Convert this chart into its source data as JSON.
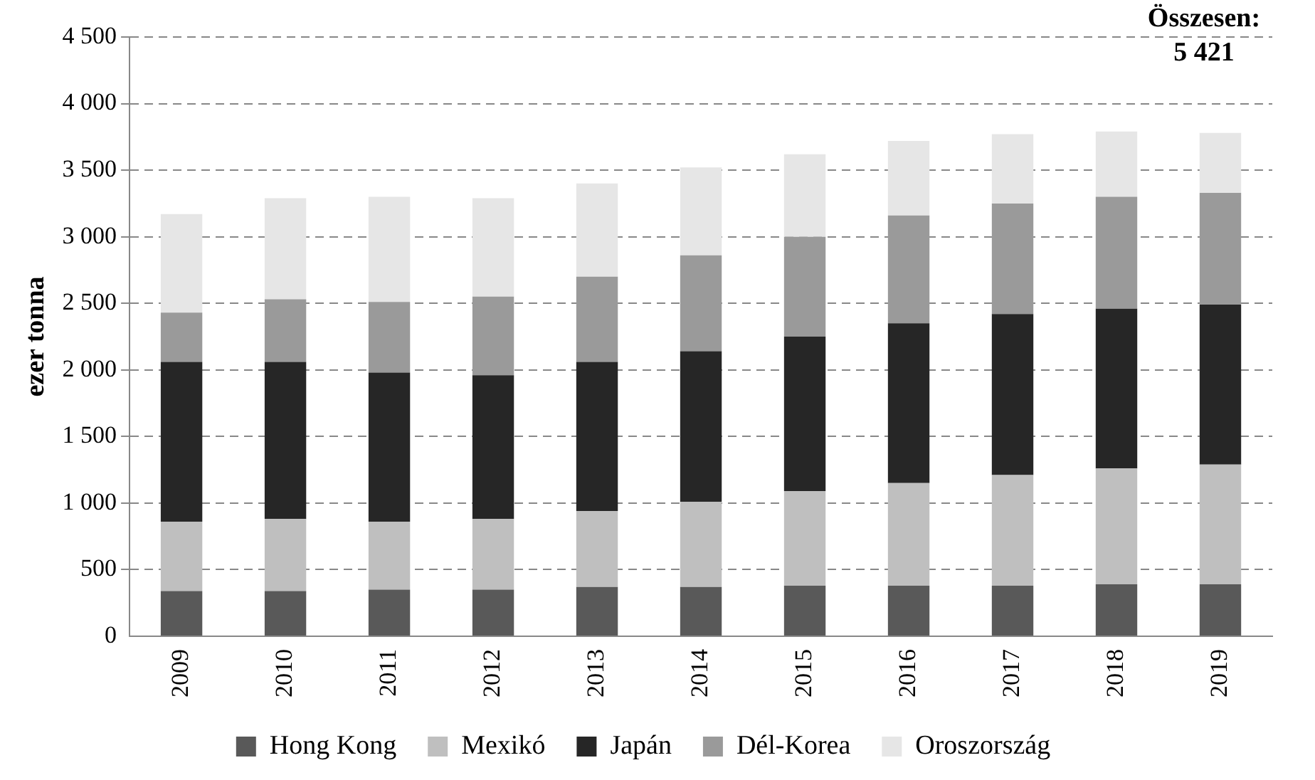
{
  "chart_data": {
    "type": "bar",
    "stacked": true,
    "ylabel": "ezer tonna",
    "categories": [
      "2009",
      "2010",
      "2011",
      "2012",
      "2013",
      "2014",
      "2015",
      "2016",
      "2017",
      "2018",
      "2019"
    ],
    "series": [
      {
        "name": "Hong Kong",
        "color": "#595959",
        "values": [
          340,
          340,
          350,
          350,
          370,
          370,
          380,
          380,
          380,
          390,
          390
        ]
      },
      {
        "name": "Mexikó",
        "color": "#bfbfbf",
        "values": [
          520,
          540,
          510,
          530,
          570,
          640,
          710,
          770,
          830,
          870,
          900
        ]
      },
      {
        "name": "Japán",
        "color": "#262626",
        "values": [
          1200,
          1180,
          1120,
          1080,
          1120,
          1130,
          1160,
          1200,
          1210,
          1200,
          1200
        ]
      },
      {
        "name": "Dél-Korea",
        "color": "#9a9a9a",
        "values": [
          370,
          470,
          530,
          590,
          640,
          720,
          750,
          810,
          830,
          840,
          840
        ]
      },
      {
        "name": "Oroszország",
        "color": "#e6e6e6",
        "values": [
          740,
          760,
          790,
          740,
          700,
          660,
          620,
          560,
          520,
          490,
          450
        ]
      }
    ],
    "ylim": [
      0,
      4500
    ],
    "yticks": [
      0,
      500,
      {
        "value": 1000,
        "label": "1 000"
      },
      {
        "value": 1500,
        "label": "1 500"
      },
      {
        "value": 2000,
        "label": "2 000"
      },
      {
        "value": 2500,
        "label": "2 500"
      },
      {
        "value": 3000,
        "label": "3 000"
      },
      {
        "value": 3500,
        "label": "3 500"
      },
      {
        "value": 4000,
        "label": "4 000"
      },
      {
        "value": 4500,
        "label": "4 500"
      }
    ],
    "grid": "y",
    "legend": "bottom",
    "annotations": [
      "Összesen:",
      "5 421"
    ]
  }
}
